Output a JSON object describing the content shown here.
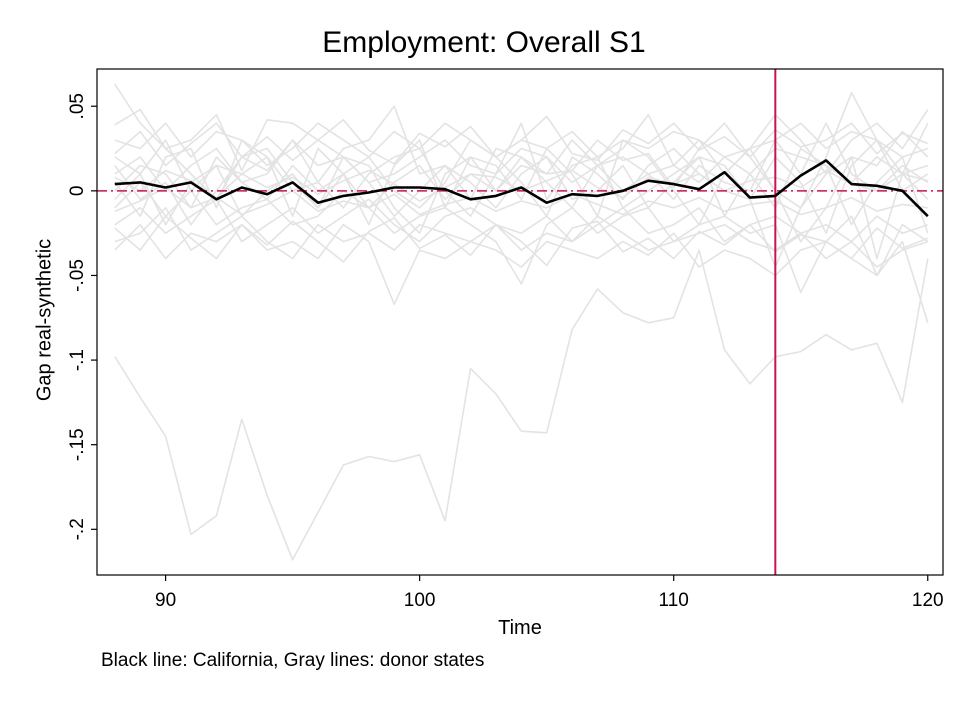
{
  "chart_data": {
    "type": "line",
    "title": "Employment: Overall S1",
    "xlabel": "Time",
    "ylabel": "Gap real-synthetic",
    "note": "Black line: California, Gray lines: donor states",
    "xlim": [
      87.3,
      120.6
    ],
    "ylim": [
      -0.227,
      0.072
    ],
    "xticks": [
      {
        "value": 90,
        "label": "90"
      },
      {
        "value": 100,
        "label": "100"
      },
      {
        "value": 110,
        "label": "110"
      },
      {
        "value": 120,
        "label": "120"
      }
    ],
    "yticks": [
      {
        "value": 0.05,
        "label": ".05"
      },
      {
        "value": 0,
        "label": "0"
      },
      {
        "value": -0.05,
        "label": "-.05"
      },
      {
        "value": -0.1,
        "label": "-.1"
      },
      {
        "value": -0.15,
        "label": "-.15"
      },
      {
        "value": -0.2,
        "label": "-.2"
      }
    ],
    "treatment_time": 114,
    "reference_y": 0,
    "x": [
      88,
      89,
      90,
      91,
      92,
      93,
      94,
      95,
      96,
      97,
      98,
      99,
      100,
      101,
      102,
      103,
      104,
      105,
      106,
      107,
      108,
      109,
      110,
      111,
      112,
      113,
      114,
      115,
      116,
      117,
      118,
      119,
      120
    ],
    "highlight": {
      "name": "California",
      "values": [
        0.004,
        0.005,
        0.002,
        0.005,
        -0.005,
        0.002,
        -0.002,
        0.005,
        -0.007,
        -0.003,
        -0.001,
        0.002,
        0.002,
        0.001,
        -0.005,
        -0.003,
        0.002,
        -0.007,
        -0.002,
        -0.003,
        0.0,
        0.006,
        0.004,
        0.001,
        0.011,
        -0.004,
        -0.003,
        0.009,
        0.018,
        0.004,
        0.003,
        0.0,
        -0.015
      ]
    },
    "donors": [
      {
        "values": [
          -0.098,
          -0.122,
          -0.145,
          -0.203,
          -0.192,
          -0.135,
          -0.18,
          -0.218,
          -0.19,
          -0.162,
          -0.157,
          -0.16,
          -0.156,
          -0.195,
          -0.105,
          -0.12,
          -0.142,
          -0.143,
          -0.082,
          -0.058,
          -0.072,
          -0.078,
          -0.075,
          -0.035,
          -0.094,
          -0.114,
          -0.098,
          -0.095,
          -0.085,
          -0.094,
          -0.09,
          -0.125,
          -0.04
        ]
      },
      {
        "values": [
          0.063,
          0.04,
          0.025,
          0.01,
          -0.005,
          0.02,
          0.012,
          0.03,
          0.005,
          -0.01,
          0.01,
          0.02,
          0.025,
          0.0,
          -0.015,
          0.01,
          0.04,
          -0.005,
          0.015,
          0.02,
          -0.01,
          0.0,
          0.01,
          0.02,
          0.015,
          -0.005,
          -0.045,
          -0.01,
          0.02,
          0.058,
          0.03,
          0.01,
          0.04
        ]
      },
      {
        "values": [
          0.039,
          0.048,
          0.025,
          0.03,
          0.045,
          0.012,
          0.042,
          0.04,
          0.03,
          0.02,
          0.015,
          -0.01,
          -0.025,
          0.01,
          0.02,
          0.0,
          0.015,
          0.01,
          0.012,
          0.03,
          0.018,
          0.022,
          0.002,
          0.025,
          0.04,
          0.02,
          0.0,
          -0.01,
          0.01,
          0.03,
          0.04,
          0.025,
          0.048
        ]
      },
      {
        "values": [
          -0.035,
          -0.02,
          -0.04,
          -0.025,
          -0.03,
          -0.02,
          -0.035,
          -0.03,
          -0.04,
          -0.02,
          -0.03,
          -0.067,
          -0.035,
          -0.04,
          -0.03,
          -0.035,
          -0.045,
          -0.03,
          -0.035,
          -0.04,
          -0.03,
          -0.038,
          -0.025,
          -0.045,
          -0.035,
          -0.04,
          -0.05,
          -0.035,
          -0.03,
          -0.04,
          -0.05,
          -0.03,
          -0.078
        ]
      },
      {
        "values": [
          0.02,
          0.01,
          0.03,
          0.0,
          0.015,
          0.01,
          0.02,
          0.0,
          0.005,
          0.025,
          0.03,
          0.05,
          0.01,
          0.015,
          -0.005,
          0.025,
          0.02,
          0.01,
          0.03,
          0.015,
          0.025,
          0.045,
          0.015,
          0.03,
          0.01,
          0.025,
          0.045,
          0.03,
          0.01,
          0.02,
          0.015,
          0.035,
          0.02
        ]
      },
      {
        "values": [
          -0.01,
          0.005,
          -0.015,
          0.0,
          -0.02,
          -0.01,
          -0.005,
          -0.02,
          -0.015,
          0.0,
          -0.01,
          -0.025,
          -0.015,
          -0.01,
          -0.02,
          -0.03,
          -0.055,
          -0.02,
          -0.01,
          -0.025,
          -0.015,
          -0.01,
          -0.03,
          -0.02,
          -0.015,
          -0.025,
          -0.02,
          -0.06,
          -0.03,
          -0.015,
          -0.05,
          -0.02,
          -0.03
        ]
      },
      {
        "values": [
          0.01,
          0.02,
          0.0,
          0.015,
          0.025,
          0.005,
          0.01,
          0.03,
          0.015,
          0.02,
          0.005,
          0.01,
          0.02,
          0.03,
          0.015,
          0.01,
          0.025,
          0.02,
          0.005,
          0.015,
          0.02,
          0.01,
          0.015,
          0.005,
          0.02,
          0.01,
          0.025,
          0.02,
          0.015,
          0.005,
          0.02,
          0.01,
          0.015
        ]
      },
      {
        "values": [
          -0.02,
          -0.01,
          -0.025,
          -0.015,
          -0.005,
          -0.03,
          -0.02,
          -0.01,
          -0.025,
          -0.015,
          -0.005,
          -0.02,
          -0.03,
          -0.015,
          -0.01,
          -0.02,
          -0.025,
          -0.015,
          -0.03,
          -0.02,
          -0.01,
          -0.025,
          -0.02,
          -0.01,
          -0.03,
          -0.02,
          -0.015,
          -0.025,
          -0.02,
          -0.03,
          -0.015,
          -0.025,
          -0.02
        ]
      },
      {
        "values": [
          0.0,
          0.015,
          0.01,
          -0.01,
          0.02,
          0.005,
          -0.005,
          0.015,
          0.0,
          0.01,
          -0.01,
          0.005,
          0.015,
          -0.005,
          0.01,
          0.0,
          0.02,
          0.005,
          -0.01,
          0.015,
          0.0,
          0.01,
          -0.005,
          0.015,
          0.005,
          0.0,
          0.03,
          0.01,
          0.04,
          0.01,
          0.0,
          0.015,
          0.005
        ]
      },
      {
        "values": [
          0.005,
          -0.015,
          0.02,
          0.025,
          -0.01,
          0.03,
          0.02,
          -0.015,
          0.025,
          0.01,
          -0.02,
          0.015,
          0.03,
          -0.01,
          0.02,
          0.015,
          -0.005,
          0.025,
          0.01,
          -0.015,
          0.03,
          0.02,
          0.0,
          -0.02,
          0.01,
          0.025,
          0.0,
          -0.03,
          -0.01,
          0.02,
          -0.04,
          0.01,
          -0.005
        ]
      },
      {
        "values": [
          -0.005,
          0.01,
          -0.02,
          0.005,
          0.015,
          -0.015,
          0.0,
          0.01,
          -0.01,
          0.02,
          0.005,
          -0.015,
          0.0,
          0.015,
          0.005,
          -0.01,
          0.01,
          0.02,
          -0.005,
          0.0,
          0.015,
          -0.01,
          0.005,
          0.02,
          -0.015,
          0.01,
          -0.01,
          0.025,
          0.015,
          -0.02,
          0.005,
          0.02,
          -0.025
        ]
      },
      {
        "values": [
          0.015,
          -0.005,
          0.005,
          -0.02,
          0.0,
          0.02,
          0.025,
          0.005,
          -0.01,
          0.01,
          0.02,
          0.0,
          -0.01,
          0.005,
          0.03,
          0.02,
          0.005,
          -0.015,
          0.02,
          0.01,
          -0.005,
          0.015,
          0.025,
          0.01,
          0.0,
          -0.005,
          0.02,
          0.005,
          -0.025,
          0.015,
          0.03,
          0.0,
          0.01
        ]
      },
      {
        "values": [
          -0.03,
          -0.025,
          -0.01,
          -0.035,
          -0.025,
          -0.015,
          -0.03,
          -0.04,
          -0.02,
          -0.03,
          -0.025,
          -0.035,
          -0.02,
          -0.025,
          -0.03,
          -0.02,
          -0.035,
          -0.025,
          -0.03,
          -0.015,
          -0.025,
          -0.035,
          -0.03,
          -0.025,
          -0.02,
          -0.03,
          -0.035,
          -0.025,
          -0.04,
          -0.03,
          -0.045,
          -0.035,
          -0.03
        ]
      },
      {
        "values": [
          0.03,
          0.025,
          0.04,
          0.02,
          0.035,
          0.03,
          0.015,
          0.025,
          0.04,
          0.03,
          0.02,
          0.035,
          0.025,
          0.04,
          0.03,
          0.02,
          0.03,
          0.025,
          0.035,
          0.02,
          0.03,
          0.025,
          0.035,
          0.03,
          0.02,
          0.025,
          0.03,
          0.04,
          0.025,
          0.035,
          0.03,
          0.02,
          0.025
        ]
      },
      {
        "values": [
          0.008,
          0.0,
          0.012,
          0.006,
          -0.004,
          0.01,
          0.002,
          0.008,
          -0.002,
          0.006,
          0.012,
          0.004,
          -0.006,
          0.002,
          0.01,
          0.008,
          0.0,
          0.006,
          0.012,
          0.002,
          -0.004,
          0.008,
          0.004,
          0.01,
          0.0,
          0.006,
          0.008,
          0.002,
          0.012,
          0.004,
          0.0,
          0.01,
          0.006
        ]
      },
      {
        "values": [
          -0.012,
          -0.006,
          0.002,
          -0.01,
          -0.004,
          -0.014,
          -0.008,
          0.0,
          -0.012,
          -0.006,
          -0.01,
          -0.002,
          -0.014,
          -0.008,
          -0.004,
          -0.012,
          -0.006,
          -0.01,
          -0.002,
          -0.008,
          -0.014,
          -0.006,
          -0.01,
          -0.004,
          -0.012,
          -0.008,
          -0.006,
          -0.014,
          -0.01,
          -0.004,
          -0.012,
          -0.008,
          -0.01
        ]
      },
      {
        "values": [
          0.022,
          0.035,
          0.015,
          0.028,
          0.04,
          0.02,
          0.032,
          0.018,
          0.03,
          0.042,
          0.024,
          0.016,
          0.034,
          0.026,
          0.038,
          0.02,
          0.03,
          0.044,
          0.022,
          0.018,
          0.036,
          0.028,
          0.04,
          0.024,
          0.032,
          0.02,
          0.036,
          0.026,
          0.03,
          0.04,
          0.022,
          0.034,
          0.028
        ]
      },
      {
        "values": [
          -0.022,
          -0.035,
          -0.015,
          -0.028,
          -0.04,
          -0.02,
          -0.032,
          -0.018,
          -0.03,
          -0.042,
          -0.024,
          -0.016,
          -0.034,
          -0.026,
          -0.038,
          -0.02,
          -0.03,
          -0.044,
          -0.022,
          -0.018,
          -0.036,
          -0.028,
          -0.04,
          -0.024,
          -0.032,
          -0.02,
          -0.036,
          -0.026,
          -0.03,
          -0.04,
          -0.022,
          -0.034,
          -0.028
        ]
      }
    ],
    "colors": {
      "highlight": "#000000",
      "donors": "#e3e3e3",
      "treatment_line": "#c8144b",
      "reference_line": "#c8144b",
      "frame": "#000000"
    }
  }
}
